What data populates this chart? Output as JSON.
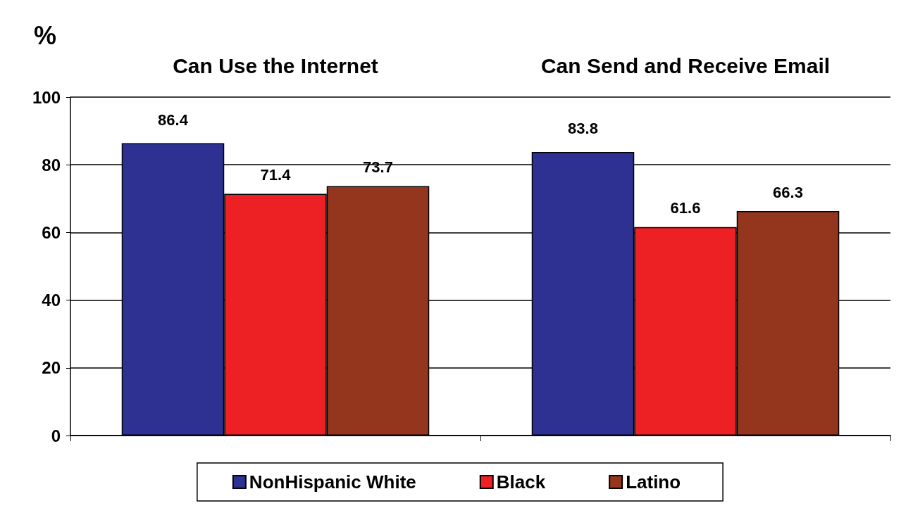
{
  "chart_data": {
    "type": "bar",
    "ylabel": "%",
    "categories": [
      "Can Use the Internet",
      "Can Send and Receive Email"
    ],
    "series": [
      {
        "name": "NonHispanic White",
        "color": "#2e3192",
        "values": [
          86.4,
          83.8
        ]
      },
      {
        "name": "Black",
        "color": "#ed2024",
        "values": [
          71.4,
          61.6
        ]
      },
      {
        "name": "Latino",
        "color": "#94361e",
        "values": [
          73.7,
          66.3
        ]
      }
    ],
    "ylim": [
      0,
      100
    ],
    "yticks": [
      0,
      20,
      40,
      60,
      80,
      100
    ],
    "grid": "y",
    "legend": "bottom",
    "data_labels": true
  }
}
